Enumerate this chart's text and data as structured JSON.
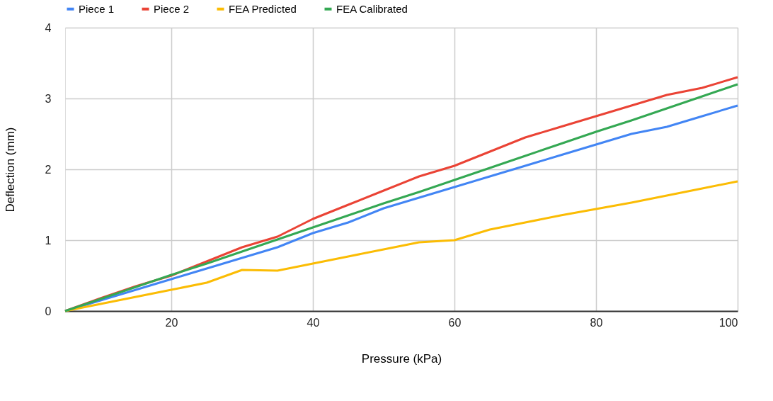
{
  "chart_data": {
    "type": "line",
    "xlabel": "Pressure (kPa)",
    "ylabel": "Deflection (mm)",
    "x": [
      5,
      10,
      15,
      20,
      25,
      30,
      35,
      40,
      45,
      50,
      55,
      60,
      65,
      70,
      75,
      80,
      85,
      90,
      95,
      100
    ],
    "series": [
      {
        "name": "Piece 1",
        "color": "#4285f4",
        "values": [
          0,
          0.15,
          0.3,
          0.45,
          0.6,
          0.75,
          0.9,
          1.1,
          1.25,
          1.45,
          1.6,
          1.75,
          1.9,
          2.05,
          2.2,
          2.35,
          2.5,
          2.6,
          2.75,
          2.9
        ]
      },
      {
        "name": "Piece 2",
        "color": "#ea4335",
        "values": [
          0,
          0.18,
          0.35,
          0.5,
          0.7,
          0.9,
          1.05,
          1.3,
          1.5,
          1.7,
          1.9,
          2.05,
          2.25,
          2.45,
          2.6,
          2.75,
          2.9,
          3.05,
          3.15,
          3.3
        ]
      },
      {
        "name": "FEA Predicted",
        "color": "#fbbc04",
        "values": [
          0,
          0.1,
          0.2,
          0.3,
          0.4,
          0.58,
          0.57,
          0.67,
          0.77,
          0.87,
          0.97,
          1.0,
          1.15,
          1.25,
          1.35,
          1.44,
          1.53,
          1.63,
          1.73,
          1.83
        ]
      },
      {
        "name": "FEA Calibrated",
        "color": "#34a853",
        "values": [
          0,
          0.17,
          0.34,
          0.51,
          0.67,
          0.84,
          1.01,
          1.18,
          1.35,
          1.52,
          1.68,
          1.85,
          2.02,
          2.19,
          2.36,
          2.53,
          2.69,
          2.86,
          3.03,
          3.2
        ]
      }
    ],
    "xlim": [
      5,
      100
    ],
    "xticks": [
      20,
      40,
      60,
      80,
      100
    ],
    "ylim": [
      0,
      4
    ],
    "yticks": [
      0,
      1,
      2,
      3,
      4
    ],
    "grid": true,
    "legend": "top",
    "marker": "none",
    "line_style": "solid"
  }
}
